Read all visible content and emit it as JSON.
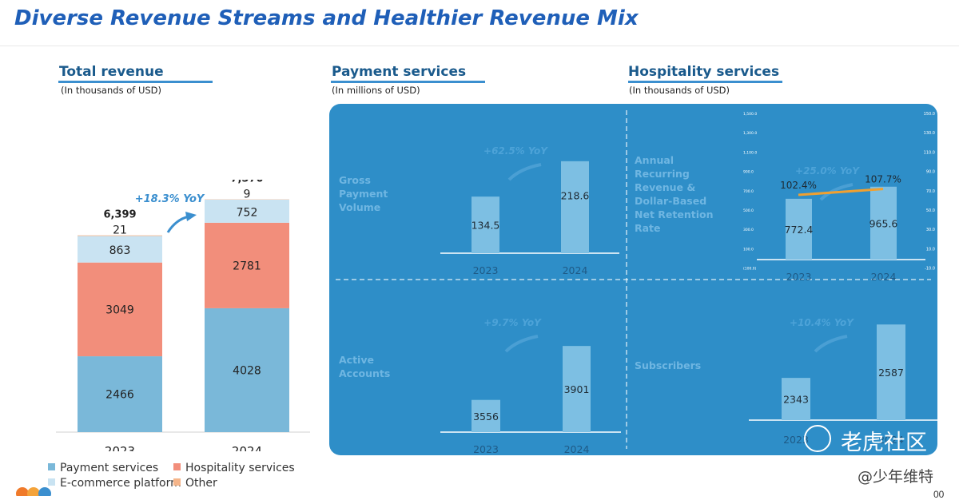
{
  "page_title": "Diverse Revenue Streams and Healthier Revenue Mix",
  "sections": {
    "total": {
      "title": "Total revenue",
      "subtitle": "(In thousands of USD)"
    },
    "payment": {
      "title": "Payment services",
      "subtitle": "(In millions of USD)"
    },
    "hospitality": {
      "title": "Hospitality services",
      "subtitle": "(In thousands of USD)"
    }
  },
  "legend": {
    "payment": "Payment services",
    "hospitality": "Hospitality services",
    "ecommerce": "E-commerce platform",
    "other": "Other"
  },
  "colors": {
    "accent": "#1f5fb8",
    "payment": "#7ab8d9",
    "hospitality": "#f28e7b",
    "ecommerce": "#c9e3f2",
    "other": "#f5b58a",
    "panel": "#2e8ec8",
    "panel_bar": "#7dbfe3",
    "retention_line": "#f0a030"
  },
  "watermark": {
    "text": "老虎社区",
    "author": "@少年维特",
    "page_number": "00"
  },
  "chart_data": [
    {
      "type": "bar",
      "stacked": true,
      "title": "Total revenue",
      "categories": [
        "2023",
        "2024"
      ],
      "series": [
        {
          "name": "Payment services",
          "values": [
            2466,
            4028
          ]
        },
        {
          "name": "Hospitality services",
          "values": [
            3049,
            2781
          ]
        },
        {
          "name": "E-commerce platform",
          "values": [
            863,
            752
          ]
        },
        {
          "name": "Other",
          "values": [
            21,
            9
          ]
        }
      ],
      "totals": [
        "6,399",
        "7,570"
      ],
      "yoy": "+18.3% YoY",
      "ylim": [
        0,
        8000
      ],
      "legend": "bottom"
    },
    {
      "type": "bar",
      "label": "Gross Payment Volume",
      "categories": [
        "2023",
        "2024"
      ],
      "values": [
        134.5,
        218.6
      ],
      "yoy": "+62.5% YoY",
      "ylim": [
        0,
        260
      ]
    },
    {
      "type": "bar",
      "label": "Active Accounts",
      "categories": [
        "2023",
        "2024"
      ],
      "values": [
        3556,
        3901
      ],
      "yoy": "+9.7% YoY",
      "ylim": [
        3350,
        4050
      ]
    },
    {
      "type": "bar",
      "label": "Annual Recurring Revenue & Dollar-Based Net Retention Rate",
      "categories": [
        "2023",
        "2024"
      ],
      "values": [
        772.4,
        965.6
      ],
      "line": {
        "values": [
          102.4,
          107.7
        ],
        "labels": [
          "102.4%",
          "107.7%"
        ]
      },
      "yoy": "+25.0% YoY",
      "ylim": [
        -200,
        1550
      ],
      "left_ticks": [
        "1,500.0",
        "1,300.0",
        "1,100.0",
        "900.0",
        "700.0",
        "500.0",
        "300.0",
        "100.0",
        "(100.0)"
      ],
      "right_ticks": [
        "150.0",
        "130.0",
        "110.0",
        "90.0",
        "70.0",
        "50.0",
        "30.0",
        "10.0",
        "-10.0"
      ]
    },
    {
      "type": "bar",
      "label": "Subscribers",
      "categories": [
        "2023",
        "2024"
      ],
      "values": [
        2343,
        2587
      ],
      "yoy": "+10.4% YoY",
      "ylim": [
        2150,
        2650
      ]
    }
  ]
}
